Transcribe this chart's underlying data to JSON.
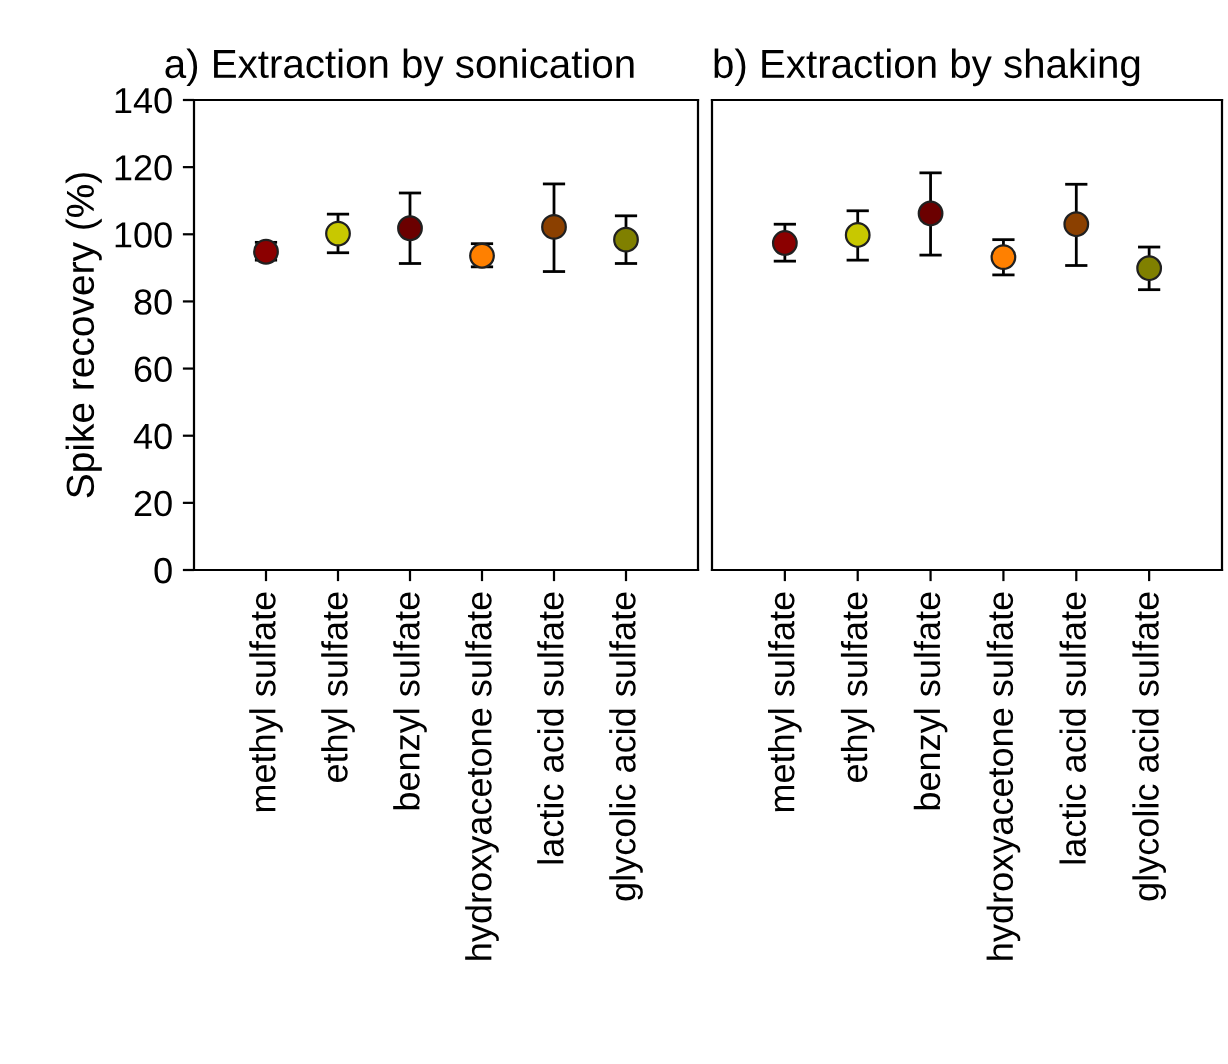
{
  "chart_data": [
    {
      "type": "scatter",
      "title": "a) Extraction by sonication",
      "ylabel": "Spike recovery (%)",
      "categories": [
        "methyl sulfate",
        "ethyl sulfate",
        "benzyl sulfate",
        "hydroxyacetone sulfate",
        "lactic acid sulfate",
        "glycolic acid sulfate"
      ],
      "values": [
        94.8,
        100.2,
        101.8,
        93.6,
        102.2,
        98.4
      ],
      "errors": [
        [
          92.3,
          97.6
        ],
        [
          94.5,
          106
        ],
        [
          91.3,
          112.3
        ],
        [
          90.3,
          97.2
        ],
        [
          88.9,
          115
        ],
        [
          91.3,
          105.5
        ]
      ],
      "colors": [
        "#8b0000",
        "#c8c800",
        "#6b0000",
        "#ff8000",
        "#8b4000",
        "#808000"
      ],
      "marker": "circle",
      "ylim": [
        0,
        140
      ],
      "yticks": [
        0,
        20,
        40,
        60,
        80,
        100,
        120,
        140
      ],
      "grid": false,
      "legend": false
    },
    {
      "type": "scatter",
      "title": "b) Extraction by shaking",
      "categories": [
        "methyl sulfate",
        "ethyl sulfate",
        "benzyl sulfate",
        "hydroxyacetone sulfate",
        "lactic acid sulfate",
        "glycolic acid sulfate"
      ],
      "values": [
        97.4,
        99.8,
        106.2,
        93.2,
        103,
        89.9
      ],
      "errors": [
        [
          92,
          103
        ],
        [
          92.3,
          107
        ],
        [
          93.8,
          118.3
        ],
        [
          87.9,
          98.4
        ],
        [
          90.7,
          114.9
        ],
        [
          83.5,
          96.2
        ]
      ],
      "colors": [
        "#8b0000",
        "#c8c800",
        "#6b0000",
        "#ff8000",
        "#8b4000",
        "#808000"
      ],
      "marker": "circle",
      "ylim": [
        0,
        140
      ],
      "tick_labels": "x",
      "grid": false,
      "legend": false
    }
  ]
}
